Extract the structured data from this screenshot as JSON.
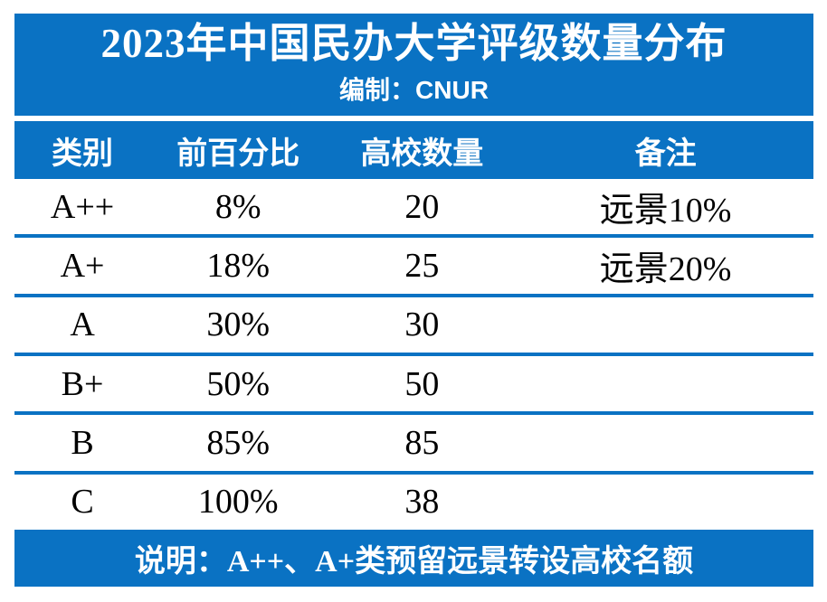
{
  "colors": {
    "primary_blue": "#0a72c3",
    "text": "#000000",
    "background": "#ffffff"
  },
  "header": {
    "title": "2023年中国民办大学评级数量分布",
    "subtitle": "编制：CNUR"
  },
  "table": {
    "columns": [
      "类别",
      "前百分比",
      "高校数量",
      "备注"
    ],
    "rows": [
      [
        "A++",
        "8%",
        "20",
        "远景10%"
      ],
      [
        "A+",
        "18%",
        "25",
        "远景20%"
      ],
      [
        "A",
        "30%",
        "30",
        ""
      ],
      [
        "B+",
        "50%",
        "50",
        ""
      ],
      [
        "B",
        "85%",
        "85",
        ""
      ],
      [
        "C",
        "100%",
        "38",
        ""
      ]
    ]
  },
  "footer": {
    "note": "说明：A++、A+类预留远景转设高校名额"
  },
  "chart_data": {
    "type": "table",
    "title": "2023年中国民办大学评级数量分布",
    "subtitle": "编制：CNUR",
    "columns": [
      "类别",
      "前百分比",
      "高校数量",
      "备注"
    ],
    "rows": [
      {
        "类别": "A++",
        "前百分比": "8%",
        "高校数量": 20,
        "备注": "远景10%"
      },
      {
        "类别": "A+",
        "前百分比": "18%",
        "高校数量": 25,
        "备注": "远景20%"
      },
      {
        "类别": "A",
        "前百分比": "30%",
        "高校数量": 30,
        "备注": ""
      },
      {
        "类别": "B+",
        "前百分比": "50%",
        "高校数量": 50,
        "备注": ""
      },
      {
        "类别": "B",
        "前百分比": "85%",
        "高校数量": 85,
        "备注": ""
      },
      {
        "类别": "C",
        "前百分比": "100%",
        "高校数量": 38,
        "备注": ""
      }
    ],
    "note": "说明：A++、A+类预留远景转设高校名额",
    "layout": {
      "header_fill": "#0a72c3",
      "header_text": "#ffffff",
      "row_divider": "#0a72c3"
    }
  }
}
